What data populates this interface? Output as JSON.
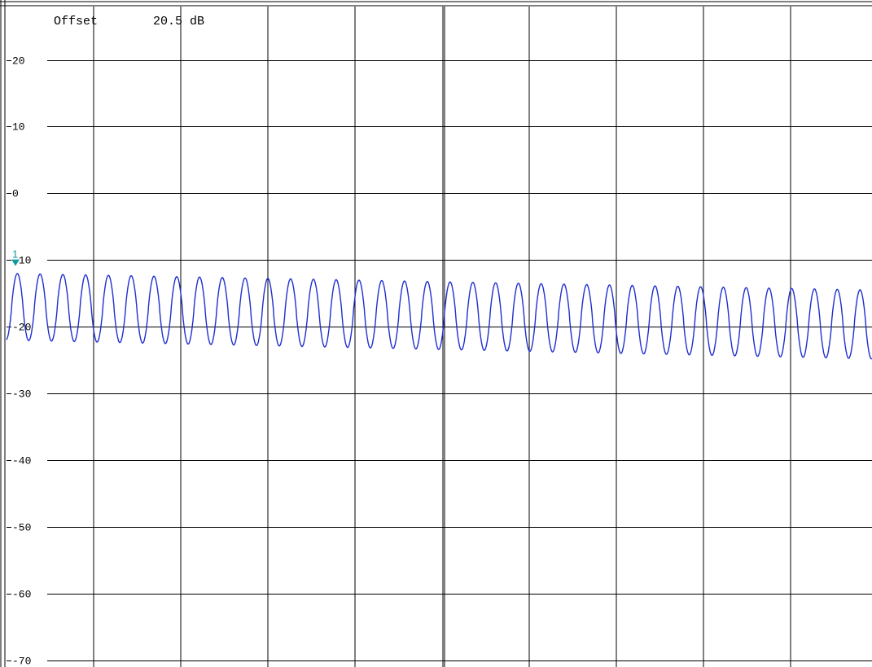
{
  "header": {
    "offset_label": "Offset",
    "offset_value": "20.5 dB"
  },
  "colors": {
    "trace": "#1f2fd0",
    "marker": "#139aa0",
    "grid": "#000000"
  },
  "marker": {
    "label": "1"
  },
  "chart_data": {
    "type": "line",
    "title": "",
    "xlabel": "",
    "ylabel": "",
    "ylim": [
      -71,
      28
    ],
    "xlim": [
      0,
      100
    ],
    "grid": true,
    "yticks": [
      20,
      10,
      0,
      -10,
      -20,
      -30,
      -40,
      -50,
      -60,
      -70
    ],
    "ytick_labels": [
      "20",
      "10",
      "0",
      "-10",
      "-20",
      "-30",
      "-40",
      "-50",
      "-60",
      "-70"
    ],
    "series": [
      {
        "cycles": 38,
        "x_start": 0,
        "x_end": 100,
        "peak_start": -12.0,
        "peak_end": -14.5,
        "trough_start": -22.0,
        "trough_end": -24.8
      }
    ],
    "markers": [
      {
        "label": "1",
        "x": 1.0,
        "y": -12.0
      }
    ]
  }
}
